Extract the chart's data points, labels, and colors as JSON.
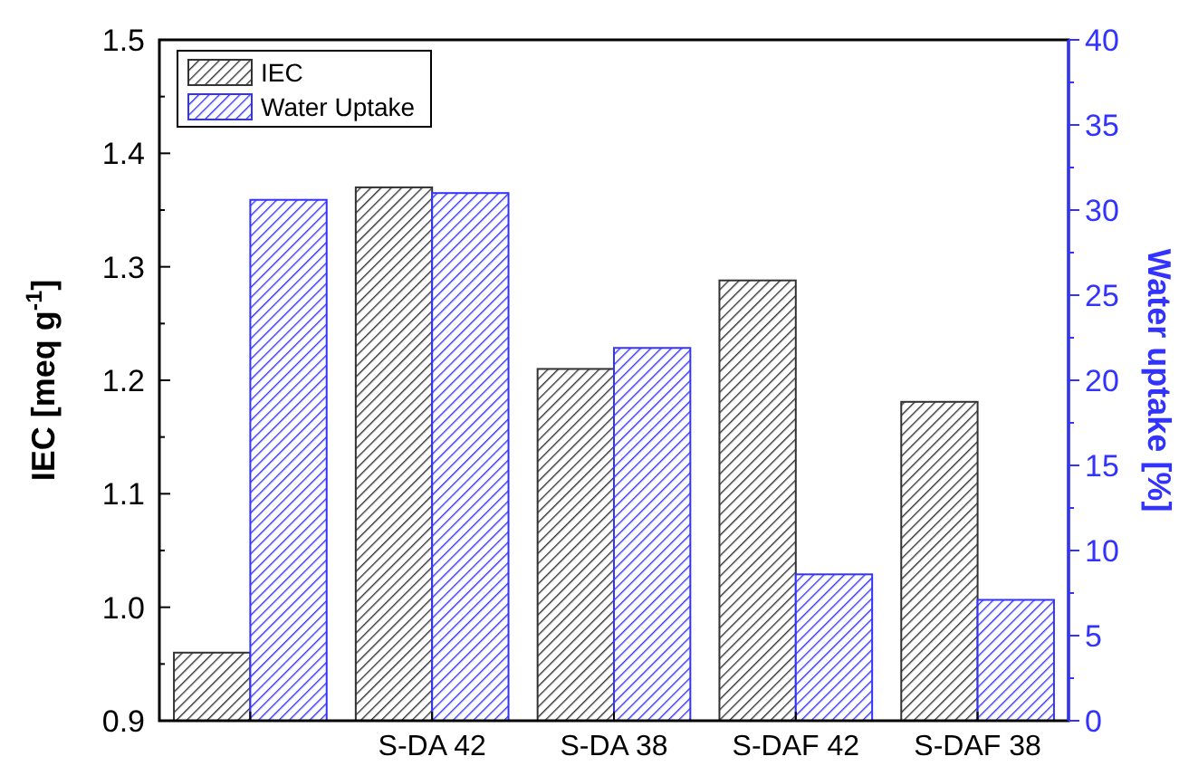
{
  "chart_data": {
    "type": "bar",
    "ylabel": "IEC [meq g$^{-1}$]",
    "y2label": "Water uptake [%]",
    "categories": [
      null,
      "S-DA 42",
      "S-DA 38",
      "S-DAF 42",
      "S-DAF 38"
    ],
    "series": [
      {
        "name": "IEC",
        "color": "#333333",
        "values": [
          0.96,
          1.37,
          1.21,
          1.288,
          1.181
        ]
      },
      {
        "name": "Water Uptake",
        "color": "#3333ff",
        "axis": "y2",
        "values": [
          30.6,
          31.0,
          21.9,
          8.6,
          7.1
        ]
      }
    ],
    "ylim": [
      0.9,
      1.5
    ],
    "yticks": [
      0.9,
      {
        "value": 1,
        "label": "1.0"
      },
      1.1,
      1.2,
      1.3,
      1.4,
      1.5
    ],
    "y2lim": [
      0,
      40
    ],
    "y2ticks": [
      0,
      5,
      10,
      15,
      20,
      25,
      30,
      35,
      40
    ],
    "legend": "top left"
  }
}
